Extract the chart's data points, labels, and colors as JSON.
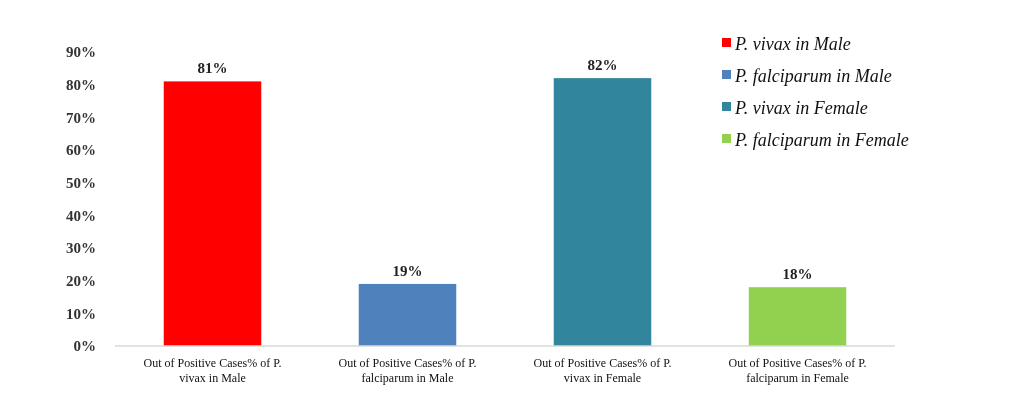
{
  "chart_data": {
    "type": "bar",
    "categories": [
      "Out of Positive Cases% of P. vivax in Male",
      "Out of Positive Cases% of P. falciparum in Male",
      "Out of Positive Cases% of P. vivax in Female",
      "Out of Positive Cases% of P. falciparum in Female"
    ],
    "series": [
      {
        "name": "P. vivax in Male",
        "color": "#ff0000",
        "values": [
          81,
          null,
          null,
          null
        ],
        "value_labels": [
          "81%",
          null,
          null,
          null
        ]
      },
      {
        "name": "P. falciparum in Male",
        "color": "#4f81bd",
        "values": [
          null,
          19,
          null,
          null
        ],
        "value_labels": [
          null,
          "19%",
          null,
          null
        ]
      },
      {
        "name": "P. vivax in Female",
        "color": "#31859c",
        "values": [
          null,
          null,
          82,
          null
        ],
        "value_labels": [
          null,
          null,
          "82%",
          null
        ]
      },
      {
        "name": "P. falciparum in Female",
        "color": "#92d050",
        "values": [
          null,
          null,
          null,
          18
        ],
        "value_labels": [
          null,
          null,
          null,
          "18%"
        ]
      }
    ],
    "ylim": [
      0,
      90
    ],
    "yticks": [
      {
        "value": 0,
        "label": "0%"
      },
      {
        "value": 10,
        "label": "10%"
      },
      {
        "value": 20,
        "label": "20%"
      },
      {
        "value": 30,
        "label": "30%"
      },
      {
        "value": 40,
        "label": "40%"
      },
      {
        "value": 50,
        "label": "50%"
      },
      {
        "value": 60,
        "label": "60%"
      },
      {
        "value": 70,
        "label": "70%"
      },
      {
        "value": 80,
        "label": "80%"
      },
      {
        "value": 90,
        "label": "90%"
      }
    ],
    "grid": false,
    "legend": "top right"
  }
}
